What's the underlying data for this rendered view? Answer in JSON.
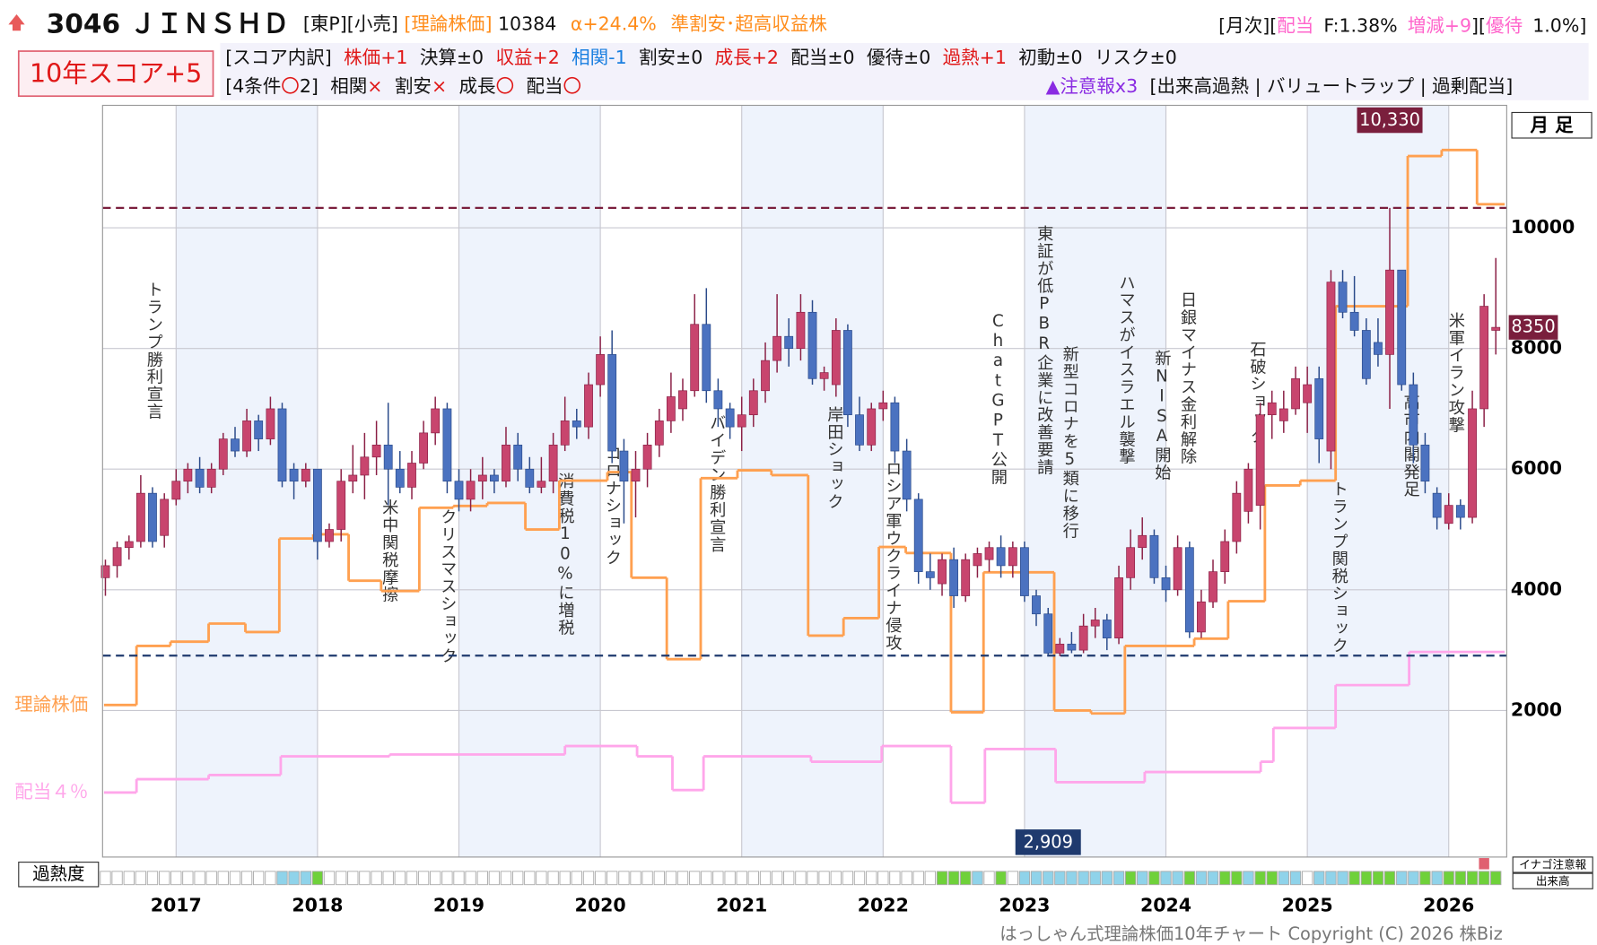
{
  "header": {
    "row1": [
      "3046 ＪＩＮＳＨＤ",
      "[東P][小売]",
      "[理論株価]",
      "10384",
      "α+24.4%",
      "準割安･超高収益株"
    ],
    "row1_right": [
      "[月次][",
      "配当",
      "F:1.38%",
      "増減+9",
      "][",
      "優待",
      "1.0%]"
    ],
    "score": "10年スコア+5",
    "row2": [
      "[スコア内訳]",
      "株価+1",
      "決算±0",
      "収益+2",
      "相関-1",
      "割安±0",
      "成長+2",
      "配当±0",
      "優待±0",
      "過熱+1",
      "初動±0",
      "リスク±0"
    ],
    "row3": [
      "[4条件",
      "〇",
      "2]",
      "相関",
      "×",
      "割安",
      "×",
      "成長",
      "〇",
      "配当",
      "〇"
    ],
    "row3_right": [
      "▲注意報x3",
      "[出来高過熱 | バリュートラップ | 過剰配当]"
    ]
  },
  "chart_data": {
    "type": "candlestick",
    "period_label": "月 足",
    "x": [
      2016.5,
      2016.583,
      2016.667,
      2016.75,
      2016.833,
      2016.917,
      2017,
      2017.083,
      2017.167,
      2017.25,
      2017.333,
      2017.417,
      2017.5,
      2017.583,
      2017.667,
      2017.75,
      2017.833,
      2017.917,
      2018,
      2018.083,
      2018.167,
      2018.25,
      2018.333,
      2018.417,
      2018.5,
      2018.583,
      2018.667,
      2018.75,
      2018.833,
      2018.917,
      2019,
      2019.083,
      2019.167,
      2019.25,
      2019.333,
      2019.417,
      2019.5,
      2019.583,
      2019.667,
      2019.75,
      2019.833,
      2019.917,
      2020,
      2020.083,
      2020.167,
      2020.25,
      2020.333,
      2020.417,
      2020.5,
      2020.583,
      2020.667,
      2020.75,
      2020.833,
      2020.917,
      2021,
      2021.083,
      2021.167,
      2021.25,
      2021.333,
      2021.417,
      2021.5,
      2021.583,
      2021.667,
      2021.75,
      2021.833,
      2021.917,
      2022,
      2022.083,
      2022.167,
      2022.25,
      2022.333,
      2022.417,
      2022.5,
      2022.583,
      2022.667,
      2022.75,
      2022.833,
      2022.917,
      2023,
      2023.083,
      2023.167,
      2023.25,
      2023.333,
      2023.417,
      2023.5,
      2023.583,
      2023.667,
      2023.75,
      2023.833,
      2023.917,
      2024,
      2024.083,
      2024.167,
      2024.25,
      2024.333,
      2024.417,
      2024.5,
      2024.583,
      2024.667,
      2024.75,
      2024.833,
      2024.917,
      2025,
      2025.083,
      2025.167,
      2025.25,
      2025.333,
      2025.417,
      2025.5,
      2025.583,
      2025.667,
      2025.75,
      2025.833,
      2025.917,
      2026,
      2026.083,
      2026.167,
      2026.25,
      2026.333
    ],
    "candles": [
      [
        4200,
        4500,
        3900,
        4400
      ],
      [
        4400,
        4800,
        4200,
        4700
      ],
      [
        4700,
        4900,
        4500,
        4800
      ],
      [
        4800,
        5900,
        4700,
        5600
      ],
      [
        5600,
        5700,
        4700,
        4800
      ],
      [
        4900,
        5600,
        4700,
        5500
      ],
      [
        5500,
        6000,
        5400,
        5800
      ],
      [
        5800,
        6100,
        5600,
        6000
      ],
      [
        6000,
        6200,
        5600,
        5700
      ],
      [
        5700,
        6100,
        5600,
        6000
      ],
      [
        6000,
        6600,
        5900,
        6500
      ],
      [
        6500,
        6700,
        6200,
        6300
      ],
      [
        6300,
        7000,
        6200,
        6800
      ],
      [
        6800,
        6900,
        6300,
        6500
      ],
      [
        6500,
        7200,
        6400,
        7000
      ],
      [
        7000,
        7100,
        5700,
        5800
      ],
      [
        6000,
        6100,
        5500,
        5800
      ],
      [
        5800,
        6100,
        5700,
        6000
      ],
      [
        6000,
        6000,
        4500,
        4800
      ],
      [
        4800,
        5100,
        4700,
        5000
      ],
      [
        5000,
        6000,
        4800,
        5800
      ],
      [
        5800,
        6400,
        5600,
        5900
      ],
      [
        5900,
        6600,
        5500,
        6200
      ],
      [
        6200,
        6800,
        5900,
        6400
      ],
      [
        6400,
        7100,
        5400,
        6000
      ],
      [
        6000,
        6300,
        5600,
        5700
      ],
      [
        5700,
        6300,
        5500,
        6100
      ],
      [
        6100,
        6800,
        6000,
        6600
      ],
      [
        6600,
        7200,
        6400,
        7000
      ],
      [
        7000,
        7100,
        5600,
        5800
      ],
      [
        5800,
        6000,
        5300,
        5500
      ],
      [
        5500,
        6000,
        5300,
        5800
      ],
      [
        5800,
        6200,
        5500,
        5900
      ],
      [
        5900,
        6000,
        5600,
        5800
      ],
      [
        5800,
        6700,
        5700,
        6400
      ],
      [
        6400,
        6600,
        5800,
        6000
      ],
      [
        6000,
        6200,
        5600,
        5700
      ],
      [
        5700,
        6200,
        5600,
        5800
      ],
      [
        5800,
        6600,
        5600,
        6400
      ],
      [
        6400,
        7200,
        6300,
        6800
      ],
      [
        6800,
        7000,
        6500,
        6700
      ],
      [
        6700,
        7600,
        6500,
        7400
      ],
      [
        7400,
        8200,
        7200,
        7900
      ],
      [
        7900,
        8300,
        6100,
        6300
      ],
      [
        6300,
        6500,
        5100,
        5800
      ],
      [
        5800,
        6300,
        5200,
        6000
      ],
      [
        6000,
        6600,
        5700,
        6400
      ],
      [
        6400,
        7000,
        6200,
        6800
      ],
      [
        6800,
        7600,
        6600,
        7200
      ],
      [
        7000,
        7500,
        6800,
        7300
      ],
      [
        7300,
        8900,
        7200,
        8400
      ],
      [
        8400,
        9000,
        7100,
        7300
      ],
      [
        7300,
        7500,
        6700,
        7000
      ],
      [
        7000,
        7100,
        6500,
        6700
      ],
      [
        6700,
        7200,
        6300,
        6900
      ],
      [
        6900,
        7500,
        6700,
        7300
      ],
      [
        7300,
        8100,
        7100,
        7800
      ],
      [
        7800,
        8900,
        7600,
        8200
      ],
      [
        8200,
        8500,
        7700,
        8000
      ],
      [
        8000,
        8900,
        7800,
        8600
      ],
      [
        8600,
        8800,
        7400,
        7500
      ],
      [
        7500,
        7700,
        7300,
        7600
      ],
      [
        7400,
        8500,
        7200,
        8300
      ],
      [
        8300,
        8400,
        6700,
        6900
      ],
      [
        6900,
        7200,
        6300,
        6400
      ],
      [
        6400,
        7100,
        6300,
        7000
      ],
      [
        7000,
        7300,
        6800,
        7100
      ],
      [
        7100,
        7200,
        6100,
        6300
      ],
      [
        6300,
        6500,
        5300,
        5500
      ],
      [
        5500,
        5600,
        4100,
        4300
      ],
      [
        4300,
        4600,
        4000,
        4200
      ],
      [
        4100,
        4600,
        3900,
        4500
      ],
      [
        4500,
        4700,
        3700,
        3900
      ],
      [
        3900,
        4600,
        3800,
        4500
      ],
      [
        4400,
        4700,
        4200,
        4600
      ],
      [
        4500,
        4800,
        4300,
        4700
      ],
      [
        4700,
        4900,
        4200,
        4400
      ],
      [
        4400,
        4800,
        4200,
        4700
      ],
      [
        4700,
        4800,
        3800,
        3900
      ],
      [
        3900,
        4000,
        3400,
        3600
      ],
      [
        3600,
        3700,
        2909,
        2950
      ],
      [
        2950,
        3200,
        2900,
        3100
      ],
      [
        3100,
        3300,
        2950,
        3000
      ],
      [
        3000,
        3600,
        2950,
        3400
      ],
      [
        3400,
        3700,
        3200,
        3500
      ],
      [
        3500,
        3600,
        3000,
        3200
      ],
      [
        3200,
        4400,
        3100,
        4200
      ],
      [
        4200,
        5000,
        4000,
        4700
      ],
      [
        4700,
        5200,
        4500,
        4900
      ],
      [
        4900,
        5000,
        4100,
        4200
      ],
      [
        4200,
        4400,
        3800,
        4000
      ],
      [
        4000,
        4900,
        3900,
        4700
      ],
      [
        4700,
        4800,
        3200,
        3300
      ],
      [
        3300,
        4000,
        3200,
        3800
      ],
      [
        3800,
        4500,
        3700,
        4300
      ],
      [
        4300,
        5000,
        4100,
        4800
      ],
      [
        4800,
        5800,
        4600,
        5600
      ],
      [
        5300,
        6100,
        5100,
        6000
      ],
      [
        5400,
        7100,
        5000,
        6900
      ],
      [
        6900,
        7300,
        6500,
        7100
      ],
      [
        6800,
        7300,
        6600,
        7000
      ],
      [
        7000,
        7700,
        6900,
        7500
      ],
      [
        7100,
        7700,
        6600,
        7400
      ],
      [
        7500,
        7700,
        6100,
        6500
      ],
      [
        6300,
        9300,
        6000,
        9100
      ],
      [
        9100,
        9300,
        8500,
        8600
      ],
      [
        8600,
        9200,
        8200,
        8300
      ],
      [
        8300,
        8500,
        7400,
        7500
      ],
      [
        8100,
        8500,
        7700,
        7900
      ],
      [
        7900,
        10330,
        7000,
        9300
      ],
      [
        9300,
        9300,
        7300,
        7400
      ],
      [
        7400,
        7600,
        6100,
        6400
      ],
      [
        6400,
        6600,
        5600,
        5800
      ],
      [
        5600,
        5700,
        5000,
        5200
      ],
      [
        5100,
        5600,
        5000,
        5400
      ],
      [
        5400,
        5500,
        5000,
        5200
      ],
      [
        5200,
        7300,
        5100,
        7000
      ],
      [
        7000,
        8900,
        6700,
        8700
      ],
      [
        8300,
        9500,
        7900,
        8350
      ]
    ],
    "up_color": "#c8456e",
    "down_color": "#4b72c0",
    "lines": [
      {
        "name": "理論株価",
        "color": "#ffa050",
        "x": [
          2016.49,
          2016.72,
          2016.96,
          2017.23,
          2017.49,
          2017.73,
          2017.97,
          2018.22,
          2018.45,
          2018.72,
          2018.96,
          2019.2,
          2019.47,
          2019.71,
          2020.05,
          2020.22,
          2020.47,
          2020.71,
          2020.97,
          2021.21,
          2021.47,
          2021.72,
          2021.97,
          2022.16,
          2022.48,
          2022.71,
          2023.21,
          2023.47,
          2023.71,
          2024.2,
          2024.44,
          2024.7,
          2024.95,
          2025.2,
          2025.71,
          2025.95,
          2026.2
        ],
        "values": [
          2090,
          3070,
          3140,
          3440,
          3300,
          4850,
          4920,
          4150,
          3980,
          5360,
          5390,
          5440,
          5000,
          5810,
          5950,
          4200,
          2850,
          5850,
          5980,
          5900,
          3240,
          3530,
          4710,
          4610,
          1970,
          4290,
          2000,
          1950,
          3070,
          3190,
          3810,
          5730,
          5810,
          8700,
          11190,
          11290,
          10390
        ]
      },
      {
        "name": "配当４％",
        "color": "#ffa6ea",
        "x": [
          2016.49,
          2016.72,
          2017.23,
          2017.74,
          2018.51,
          2019.75,
          2020.26,
          2020.51,
          2020.73,
          2021.49,
          2021.99,
          2022.48,
          2022.72,
          2023.22,
          2023.85,
          2024.67,
          2024.76,
          2025.2,
          2025.72
        ],
        "values": [
          640,
          860,
          930,
          1240,
          1270,
          1410,
          1240,
          680,
          1240,
          1150,
          1410,
          470,
          1360,
          810,
          980,
          1150,
          1710,
          2420,
          2970
        ]
      }
    ],
    "reference_lines": [
      {
        "value": 10330,
        "label": "10,330",
        "color": "#7a1f3d"
      },
      {
        "value": 2909,
        "label": "2,909",
        "color": "#1f3a6e"
      }
    ],
    "annotations": [
      "トランプ勝利宣言",
      "米中関税摩擦",
      "クリスマスショック",
      "消費税10%に増税",
      "コロナショック",
      "バイデン勝利宣言",
      "岸田ショック",
      "ロシア軍ウクライナ侵攻",
      "ChatGPT公開",
      "東証が低PBR企業に改善要請",
      "新型コロナを5類に移行",
      "ハマスがイスラエル襲撃",
      "新NISA開始",
      "日銀マイナス金利解除",
      "石破ショック",
      "トランプ関税ショック",
      "高市内閣発足",
      "米軍イラン攻撃"
    ],
    "heat_label": "過熱度",
    "heat_levels": [
      0,
      0,
      0,
      0,
      0,
      0,
      0,
      0,
      0,
      0,
      0,
      0,
      0,
      0,
      0,
      1,
      1,
      1,
      2,
      0,
      0,
      0,
      0,
      0,
      0,
      0,
      0,
      0,
      0,
      0,
      0,
      0,
      0,
      0,
      0,
      0,
      0,
      0,
      0,
      0,
      0,
      0,
      0,
      0,
      0,
      0,
      0,
      0,
      0,
      0,
      0,
      0,
      0,
      0,
      0,
      0,
      0,
      0,
      0,
      0,
      0,
      0,
      0,
      0,
      0,
      0,
      0,
      0,
      0,
      0,
      0,
      2,
      2,
      2,
      1,
      0,
      2,
      0,
      1,
      1,
      1,
      1,
      1,
      1,
      1,
      1,
      1,
      2,
      1,
      2,
      1,
      1,
      2,
      1,
      1,
      2,
      2,
      1,
      2,
      2,
      1,
      1,
      0,
      1,
      1,
      1,
      2,
      2,
      2,
      2,
      1,
      1,
      2,
      1,
      2,
      2,
      2,
      2,
      2
    ],
    "heat_colors": [
      "#ffffff",
      "#8fd3ea",
      "#6fd13a"
    ],
    "alert_label": "イナゴ注意報",
    "alert_x": [
      2026.25
    ],
    "alert_color": "#e06070",
    "volume_label": "出来高",
    "xlim": [
      2016.48,
      2026.41
    ],
    "xticks": [
      2017,
      2018,
      2019,
      2020,
      2021,
      2022,
      2023,
      2024,
      2025,
      2026
    ],
    "ylim": [
      -430,
      12030
    ],
    "yticks": [
      2000,
      4000,
      6000,
      8000,
      10000
    ],
    "grid": true,
    "band_color": "#eef3fc",
    "footer": "はっしゃん式理論株価10年チャート Copyright (C) 2026 株Biz"
  }
}
